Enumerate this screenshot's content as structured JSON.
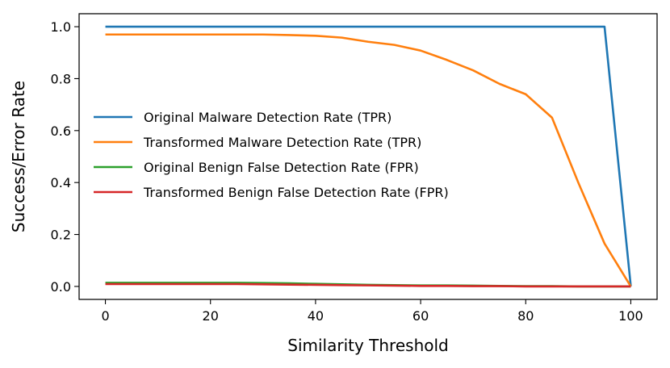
{
  "chart_data": {
    "type": "line",
    "xlabel": "Similarity Threshold",
    "ylabel": "Success/Error Rate",
    "xlim": [
      -5,
      105
    ],
    "ylim": [
      -0.05,
      1.05
    ],
    "xticks": [
      0,
      20,
      40,
      60,
      80,
      100
    ],
    "yticks": [
      0.0,
      0.2,
      0.4,
      0.6,
      0.8,
      1.0
    ],
    "xtick_labels": [
      "0",
      "20",
      "40",
      "60",
      "80",
      "100"
    ],
    "ytick_labels": [
      "0.0",
      "0.2",
      "0.4",
      "0.6",
      "0.8",
      "1.0"
    ],
    "grid": false,
    "legend_position": "center-left",
    "x": [
      0,
      5,
      10,
      15,
      20,
      25,
      30,
      35,
      40,
      45,
      50,
      55,
      60,
      65,
      70,
      75,
      80,
      85,
      90,
      95,
      100
    ],
    "series": [
      {
        "name": "Original Malware Detection Rate (TPR)",
        "color": "#1f77b4",
        "values": [
          1.0,
          1.0,
          1.0,
          1.0,
          1.0,
          1.0,
          1.0,
          1.0,
          1.0,
          1.0,
          1.0,
          1.0,
          1.0,
          1.0,
          1.0,
          1.0,
          1.0,
          1.0,
          1.0,
          1.0,
          0.0
        ]
      },
      {
        "name": "Transformed Malware Detection Rate (TPR)",
        "color": "#ff7f0e",
        "values": [
          0.97,
          0.97,
          0.97,
          0.97,
          0.97,
          0.97,
          0.97,
          0.968,
          0.965,
          0.958,
          0.942,
          0.93,
          0.908,
          0.872,
          0.832,
          0.78,
          0.74,
          0.65,
          0.4,
          0.165,
          0.0
        ]
      },
      {
        "name": "Original Benign False Detection Rate (FPR)",
        "color": "#2ca02c",
        "values": [
          0.014,
          0.014,
          0.014,
          0.014,
          0.014,
          0.014,
          0.013,
          0.012,
          0.01,
          0.008,
          0.006,
          0.005,
          0.004,
          0.004,
          0.003,
          0.002,
          0.001,
          0.001,
          0.0,
          0.0,
          0.0
        ]
      },
      {
        "name": "Transformed Benign False Detection Rate (FPR)",
        "color": "#d62728",
        "values": [
          0.009,
          0.009,
          0.009,
          0.009,
          0.009,
          0.009,
          0.008,
          0.007,
          0.006,
          0.005,
          0.004,
          0.003,
          0.002,
          0.002,
          0.001,
          0.001,
          0.0,
          0.0,
          0.0,
          0.0,
          0.0
        ]
      }
    ]
  }
}
